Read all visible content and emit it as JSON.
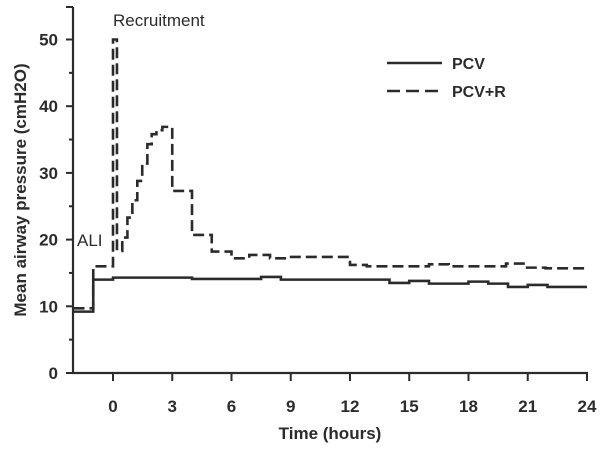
{
  "chart_data": {
    "type": "line",
    "title": "",
    "xlabel": "Time (hours)",
    "ylabel": "Mean airway pressure (cmH2O)",
    "xlim": [
      -2,
      24
    ],
    "ylim": [
      0,
      55
    ],
    "xticks": [
      0,
      3,
      6,
      9,
      12,
      15,
      18,
      21,
      24
    ],
    "yticks_major": [
      0,
      10,
      20,
      30,
      40,
      50
    ],
    "yticks_minor": [
      5,
      15,
      25,
      35,
      45
    ],
    "grid": false,
    "legend_position": "upper right",
    "step": true,
    "annotations": [
      {
        "text": "Recruitment",
        "x": 0.0,
        "y": 53
      },
      {
        "text": "ALI",
        "x": -1.8,
        "y": 20
      }
    ],
    "series": [
      {
        "name": "PCV",
        "style": "solid",
        "x": [
          -2,
          -1,
          0,
          3,
          4,
          7.5,
          8.5,
          12,
          14,
          15,
          16,
          18,
          19,
          20,
          21,
          22,
          24
        ],
        "values": [
          9.2,
          14.0,
          14.3,
          14.3,
          14.1,
          14.4,
          14.0,
          14.0,
          13.5,
          13.8,
          13.4,
          13.7,
          13.4,
          12.9,
          13.2,
          12.9,
          12.9
        ]
      },
      {
        "name": "PCV+R",
        "style": "dashed",
        "x": [
          -2,
          -1,
          0,
          0.2,
          0.47,
          0.73,
          0.98,
          1.23,
          1.48,
          1.74,
          1.96,
          2.2,
          2.5,
          3.0,
          4.0,
          5.0,
          6.0,
          6.9,
          7.95,
          8.9,
          12.0,
          12.85,
          16.0,
          17.0,
          19.9,
          20.9,
          21.9,
          24
        ],
        "values": [
          9.7,
          16.0,
          50.0,
          18.3,
          20.3,
          23.3,
          25.9,
          28.8,
          31.4,
          34.3,
          35.8,
          36.4,
          36.9,
          27.3,
          20.7,
          18.2,
          17.2,
          17.7,
          17.2,
          17.4,
          16.2,
          16.0,
          16.3,
          16.0,
          16.4,
          15.8,
          15.7,
          15.7
        ]
      }
    ]
  },
  "labels": {
    "xlabel": "Time (hours)",
    "ylabel": "Mean airway pressure (cmH2O)",
    "recruitment": "Recruitment",
    "ali": "ALI",
    "legend": [
      "PCV",
      "PCV+R"
    ]
  }
}
